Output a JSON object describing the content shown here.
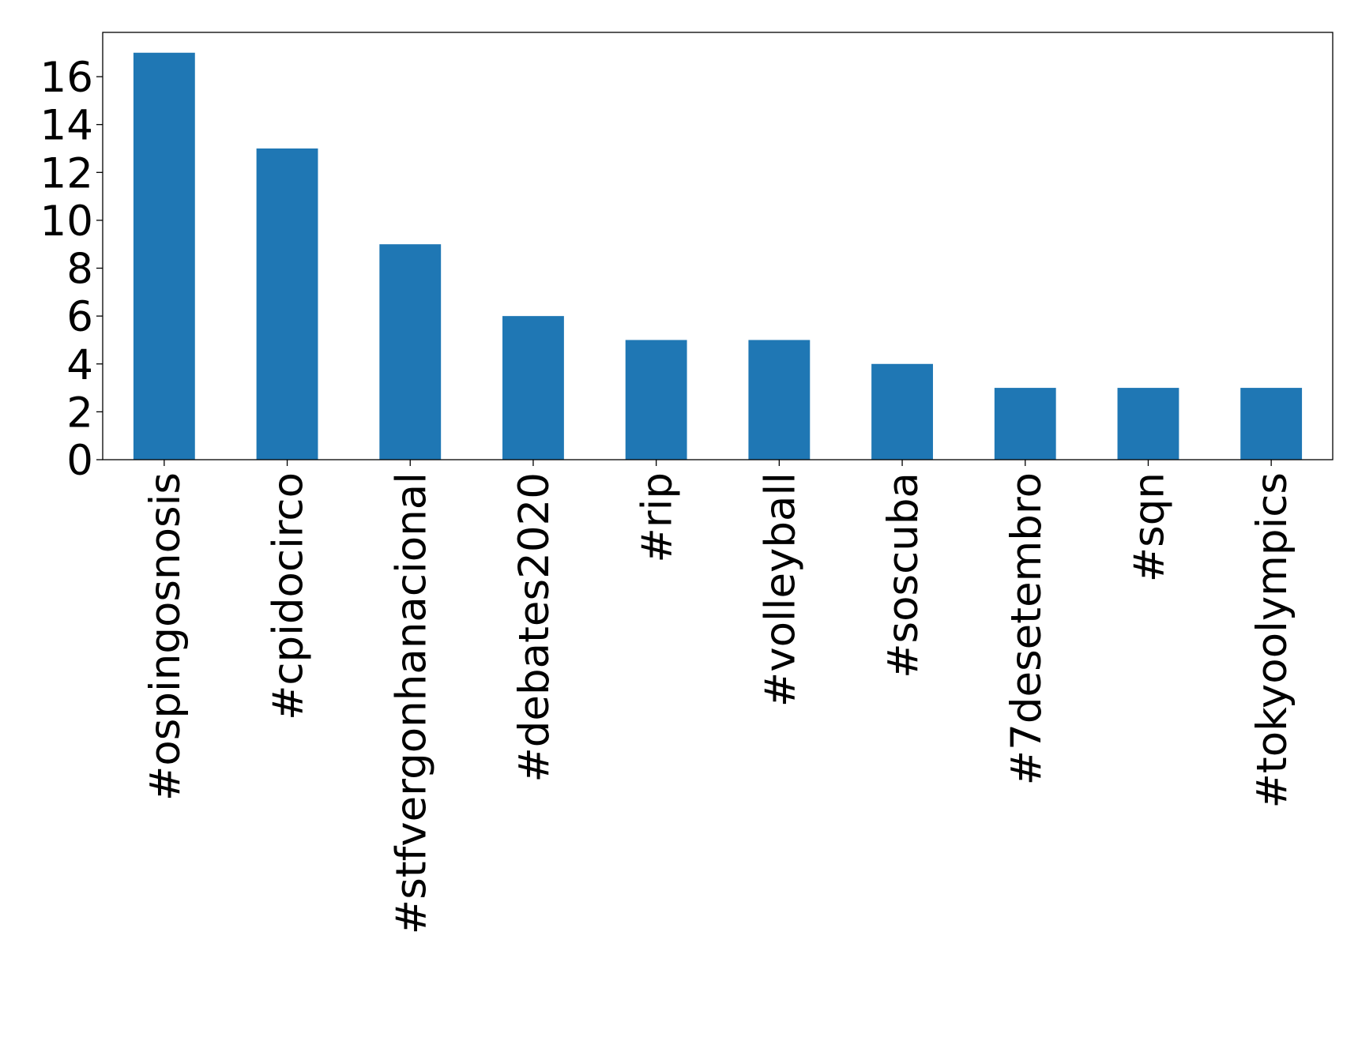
{
  "chart_data": {
    "type": "bar",
    "categories": [
      "#ospingosnosis",
      "#cpidocirco",
      "#stfvergonhanacional",
      "#debates2020",
      "#rip",
      "#volleyball",
      "#soscuba",
      "#7desetembro",
      "#sqn",
      "#tokyoolympics"
    ],
    "values": [
      17,
      13,
      9,
      6,
      5,
      5,
      4,
      3,
      3,
      3
    ],
    "color": "#1f77b4",
    "ylim": [
      0,
      17.85
    ],
    "yticks": [
      0,
      2,
      4,
      6,
      8,
      10,
      12,
      14,
      16
    ],
    "grid": false
  }
}
